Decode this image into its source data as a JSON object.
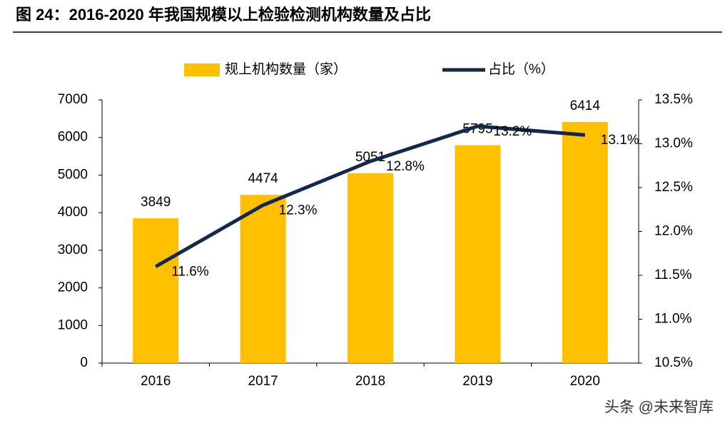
{
  "chart_data": {
    "type": "bar-line",
    "title": "图 24：2016-2020 年我国规模以上检验检测机构数量及占比",
    "watermark": "头条 @未来智库",
    "categories": [
      "2016",
      "2017",
      "2018",
      "2019",
      "2020"
    ],
    "series": [
      {
        "name": "规上机构数量（家）",
        "type": "bar",
        "color": "#FFC000",
        "values": [
          3849,
          4474,
          5051,
          5795,
          6414
        ]
      },
      {
        "name": "占比（%）",
        "type": "line",
        "axis": "y2",
        "color": "#13294B",
        "values": [
          11.6,
          12.3,
          12.8,
          13.2,
          13.1
        ],
        "value_labels": [
          "11.6%",
          "12.3%",
          "12.8%",
          "13.2%",
          "13.1%"
        ]
      }
    ],
    "ylim": [
      0,
      7000
    ],
    "yticks": [
      0,
      1000,
      2000,
      3000,
      4000,
      5000,
      6000,
      7000
    ],
    "y2lim": [
      10.5,
      13.5
    ],
    "y2ticks": [
      {
        "value": 10.5,
        "label": "10.5%"
      },
      {
        "value": 11.0,
        "label": "11.0%"
      },
      {
        "value": 11.5,
        "label": "11.5%"
      },
      {
        "value": 12.0,
        "label": "12.0%"
      },
      {
        "value": 12.5,
        "label": "12.5%"
      },
      {
        "value": 13.0,
        "label": "13.0%"
      },
      {
        "value": 13.5,
        "label": "13.5%"
      }
    ],
    "grid": false,
    "legend": "top"
  }
}
